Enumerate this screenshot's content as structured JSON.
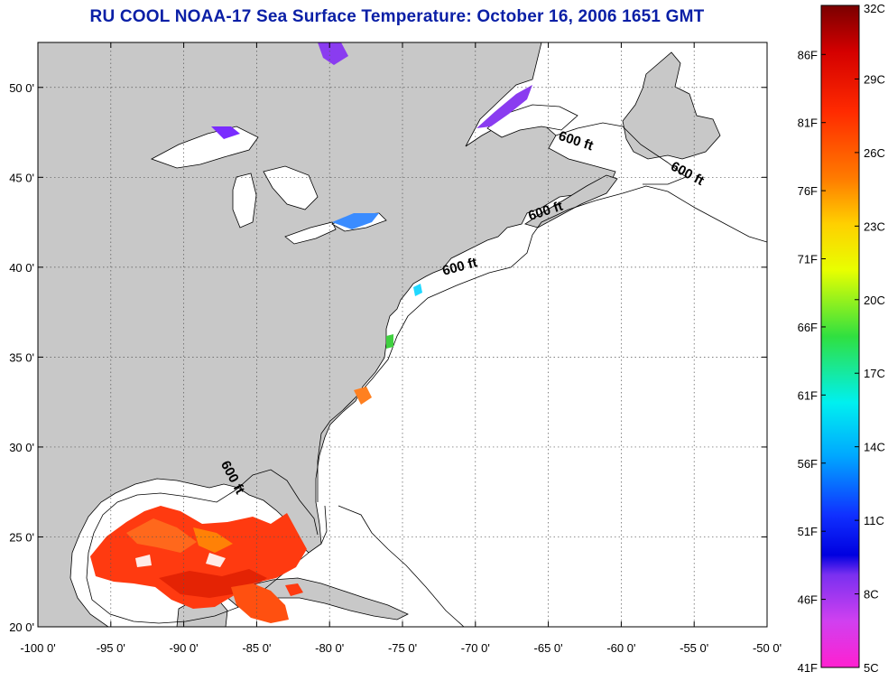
{
  "title": "RU COOL  NOAA-17  Sea Surface Temperature:  October 16, 2006 1651 GMT",
  "map": {
    "lon_range": [
      -100,
      -50
    ],
    "lat_range": [
      20,
      52.5
    ],
    "lon_ticks": [
      {
        "value": -100,
        "label": "-100 0'"
      },
      {
        "value": -95,
        "label": "-95 0'"
      },
      {
        "value": -90,
        "label": "-90 0'"
      },
      {
        "value": -85,
        "label": "-85 0'"
      },
      {
        "value": -80,
        "label": "-80 0'"
      },
      {
        "value": -75,
        "label": "-75 0'"
      },
      {
        "value": -70,
        "label": "-70 0'"
      },
      {
        "value": -65,
        "label": "-65 0'"
      },
      {
        "value": -60,
        "label": "-60 0'"
      },
      {
        "value": -55,
        "label": "-55 0'"
      },
      {
        "value": -50,
        "label": "-50 0'"
      }
    ],
    "lat_ticks": [
      {
        "value": 20,
        "label": "20 0'"
      },
      {
        "value": 25,
        "label": "25 0'"
      },
      {
        "value": 30,
        "label": "30 0'"
      },
      {
        "value": 35,
        "label": "35 0'"
      },
      {
        "value": 40,
        "label": "40 0'"
      },
      {
        "value": 45,
        "label": "45 0'"
      },
      {
        "value": 50,
        "label": "50 0'"
      }
    ],
    "grid": true,
    "land_color": "#c8c8c8",
    "ocean_color": "#ffffff",
    "contour_labels": [
      {
        "text": "600 ft",
        "lon": -63.2,
        "lat": 46.8,
        "rotate": 18
      },
      {
        "text": "600 ft",
        "lon": -55.6,
        "lat": 45.0,
        "rotate": 28
      },
      {
        "text": "600 ft",
        "lon": -65.1,
        "lat": 42.9,
        "rotate": -18
      },
      {
        "text": "600 ft",
        "lon": -71.0,
        "lat": 39.8,
        "rotate": -15
      },
      {
        "text": "600 ft",
        "lon": -86.9,
        "lat": 28.2,
        "rotate": 62
      }
    ]
  },
  "colorbar": {
    "celsius_labels": [
      "32C",
      "29C",
      "26C",
      "23C",
      "20C",
      "17C",
      "14C",
      "11C",
      "8C",
      "5C"
    ],
    "fahrenheit_labels": [
      "86F",
      "81F",
      "76F",
      "71F",
      "66F",
      "61F",
      "56F",
      "51F",
      "46F",
      "41F"
    ],
    "celsius_values": [
      32,
      29,
      26,
      23,
      20,
      17,
      14,
      11,
      8,
      5
    ],
    "fahrenheit_values": [
      86,
      81,
      76,
      71,
      66,
      61,
      56,
      51,
      46,
      41
    ]
  },
  "colors": {
    "title": "#0a1fa6",
    "warm_sst": "#ff3a10",
    "cool_sst": "#8a3cf0"
  }
}
